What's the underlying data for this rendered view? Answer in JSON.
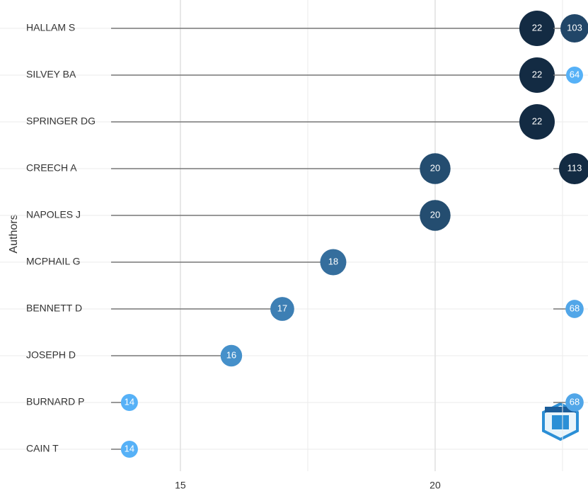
{
  "chart_data": {
    "type": "lollipop",
    "y_label": "Authors",
    "categories": [
      "HALLAM S",
      "SILVEY BA",
      "SPRINGER DG",
      "CREECH A",
      "NAPOLES J",
      "MCPHAIL G",
      "BENNETT D",
      "JOSEPH D",
      "BURNARD P",
      "CAIN T"
    ],
    "values": [
      22,
      22,
      22,
      20,
      20,
      18,
      17,
      16,
      14,
      14
    ],
    "right_values": [
      103,
      64,
      null,
      113,
      null,
      null,
      68,
      null,
      68,
      null
    ],
    "color_low": "#56b1f7",
    "color_high": "#132b43",
    "xlim": [
      11.46,
      23
    ],
    "xticks": [
      15,
      20
    ],
    "minor_xticks": [
      17.5,
      22.5
    ],
    "grid": true
  }
}
